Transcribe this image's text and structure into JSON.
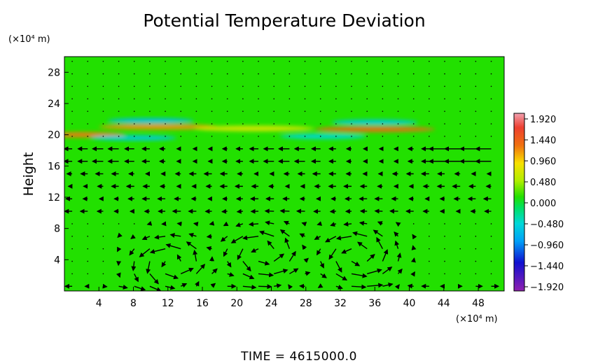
{
  "chart_data": {
    "type": "heatmap",
    "title": "Potential Temperature Deviation",
    "ylabel": "Height",
    "y_unit": "(×10⁴ m)",
    "x_unit": "(×10⁴ m)",
    "xlim": [
      0,
      51
    ],
    "ylim": [
      0,
      30
    ],
    "x_ticks": [
      "4",
      "8",
      "12",
      "16",
      "20",
      "24",
      "28",
      "32",
      "36",
      "40",
      "44",
      "48"
    ],
    "y_ticks": [
      "4",
      "8",
      "12",
      "16",
      "20",
      "24",
      "28"
    ],
    "colorbar": {
      "range": [
        -1.92,
        1.92
      ],
      "tick_labels": [
        "1.920",
        "1.440",
        "0.960",
        "0.480",
        "0.000",
        "−0.480",
        "−0.960",
        "−1.440",
        "−1.920"
      ]
    },
    "background_value": 0.0,
    "anomalies": [
      {
        "x": 11,
        "y": 21.0,
        "value": 1.3
      },
      {
        "x": 22,
        "y": 20.8,
        "value": 0.8
      },
      {
        "x": 36,
        "y": 20.7,
        "value": 1.5
      },
      {
        "x": 2,
        "y": 20.0,
        "value": 1.4
      },
      {
        "x": 10,
        "y": 21.8,
        "value": -0.7
      },
      {
        "x": 36,
        "y": 21.6,
        "value": -0.6
      },
      {
        "x": 8,
        "y": 19.6,
        "value": -0.6
      },
      {
        "x": 30,
        "y": 19.8,
        "value": -0.5
      }
    ],
    "vector_field": {
      "grid_spacing_x": 1.8,
      "grid_spacing_y": 1.6,
      "eddy_centers": [
        {
          "x": 12.5,
          "y": 3.5
        },
        {
          "x": 23.0,
          "y": 4.8
        },
        {
          "x": 34.0,
          "y": 4.5
        }
      ],
      "upper_jet": {
        "y_range": [
          16,
          19.5
        ],
        "direction": "westward"
      }
    },
    "footer": "TIME = 4615000.0"
  }
}
